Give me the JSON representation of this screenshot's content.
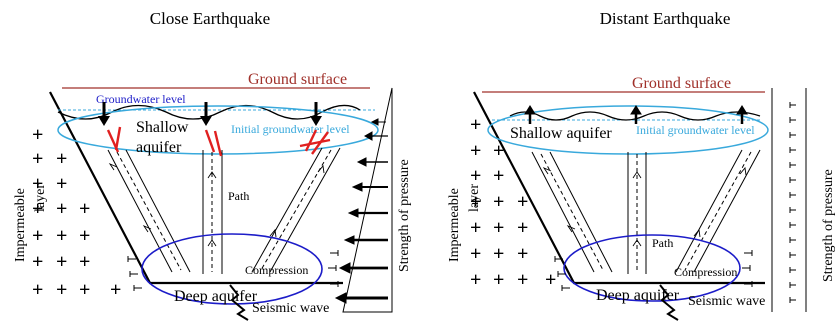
{
  "panels": [
    {
      "title": "Close Earthquake",
      "ground_surface": "Ground surface",
      "groundwater_level": "Groundwater level",
      "initial_groundwater_level": "Initial groundwater level",
      "shallow_aquifer_line1": "Shallow",
      "shallow_aquifer_line2": "aquifer",
      "path": "Path",
      "compression": "Compression",
      "deep_aquifer": "Deep aquifer",
      "seismic_wave": "Seismic wave",
      "impermeable_layer_line1": "Impermeable",
      "impermeable_layer_line2": "layer",
      "strength_of_pressure": "Strength of pressure"
    },
    {
      "title": "Distant Earthquake",
      "ground_surface": "Ground surface",
      "initial_groundwater_level": "Initial groundwater level",
      "shallow_aquifer": "Shallow aquifer",
      "path": "Path",
      "compression": "Compression",
      "deep_aquifer": "Deep aquifer",
      "seismic_wave": "Seismic wave",
      "impermeable_layer_line1": "Impermeable",
      "impermeable_layer_line2": "layer",
      "strength_of_pressure": "Strength of pressure"
    }
  ],
  "colors": {
    "ground_surface": "#a0302a",
    "aquifer_outline_shallow": "#39a9dc",
    "aquifer_outline_deep": "#1c1cc8",
    "initial_level_text": "#39a9dc",
    "groundwater_level_text": "#1c1cc8",
    "broken_path": "#e02020",
    "ink": "#000000"
  }
}
